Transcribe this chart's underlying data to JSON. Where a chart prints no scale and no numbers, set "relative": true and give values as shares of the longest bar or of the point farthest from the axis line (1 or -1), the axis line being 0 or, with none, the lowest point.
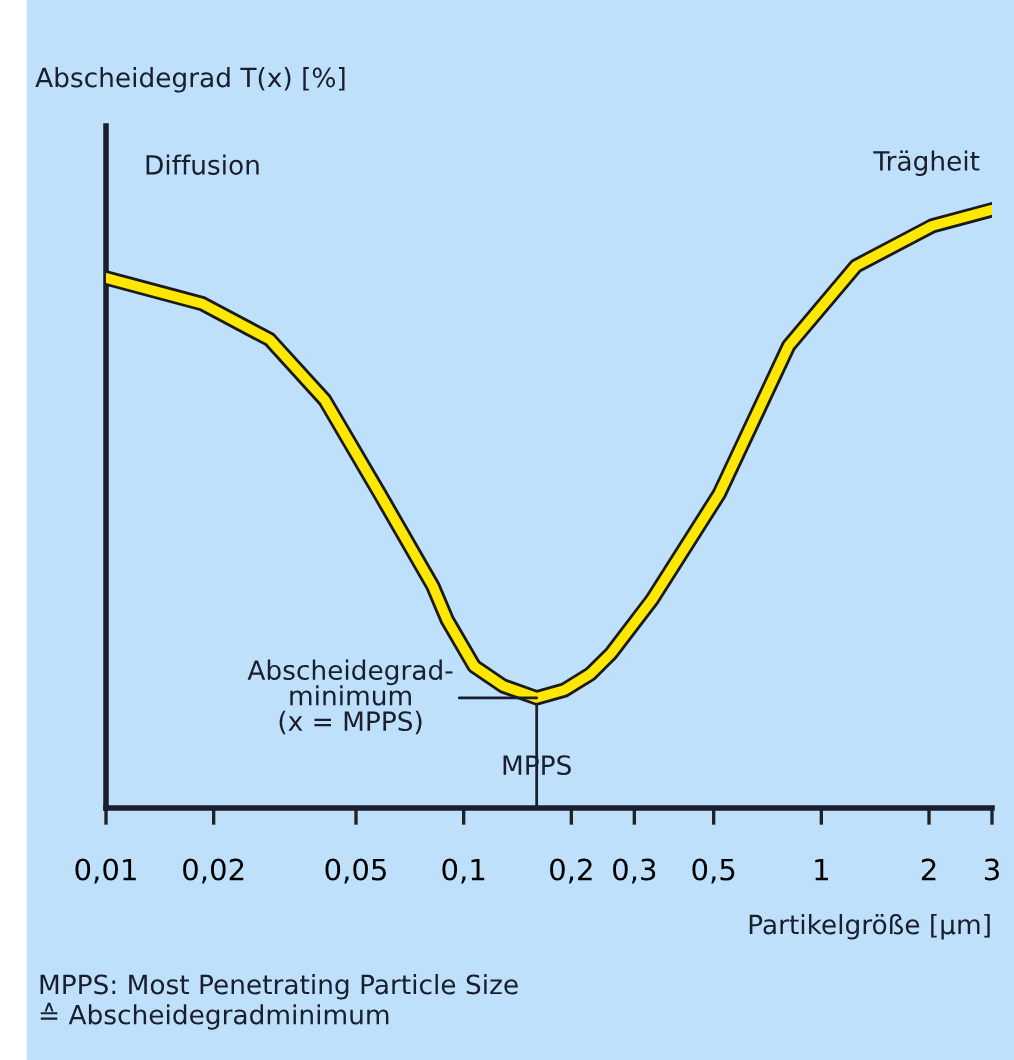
{
  "chart_data": {
    "type": "line",
    "title": "Abscheidegrad T(x) [%]",
    "xlabel": "Partikelgröße [µm]",
    "relative": true,
    "log": "x",
    "x": [
      0.01,
      0.0186,
      0.0287,
      0.0409,
      0.0583,
      0.082,
      0.09,
      0.107,
      0.129,
      0.16,
      0.191,
      0.226,
      0.258,
      0.336,
      0.518,
      0.811,
      1.25,
      2.04,
      3
    ],
    "series": [
      {
        "color": "#ffe800",
        "values": [
          0.886,
          0.843,
          0.783,
          0.682,
          0.525,
          0.371,
          0.314,
          0.237,
          0.204,
          0.184,
          0.197,
          0.224,
          0.258,
          0.348,
          0.525,
          0.773,
          0.906,
          0.973,
          1
        ]
      }
    ],
    "xlim": [
      0.01,
      3
    ],
    "xticks": [
      {
        "value": 0.01,
        "label": "0,01"
      },
      {
        "value": 0.02,
        "label": "0,02"
      },
      {
        "value": 0.05,
        "label": "0,05"
      },
      {
        "value": 0.1,
        "label": "0,1"
      },
      {
        "value": 0.2,
        "label": "0,2"
      },
      {
        "value": 0.3,
        "label": "0,3"
      },
      {
        "value": 0.5,
        "label": "0,5"
      },
      1,
      2,
      3
    ],
    "annotations": [
      "Diffusion",
      "Trägheit",
      {
        "text": "Abscheidegrad-\nminimum\n(x = MPPS)",
        "x": 0.16,
        "y": 0.184
      },
      "MPPS",
      "MPPS: Most Penetrating Particle Size\n≙ Abscheidegradminimum"
    ],
    "grid": false,
    "legend": false,
    "marker": "none",
    "line_style": "solid"
  }
}
